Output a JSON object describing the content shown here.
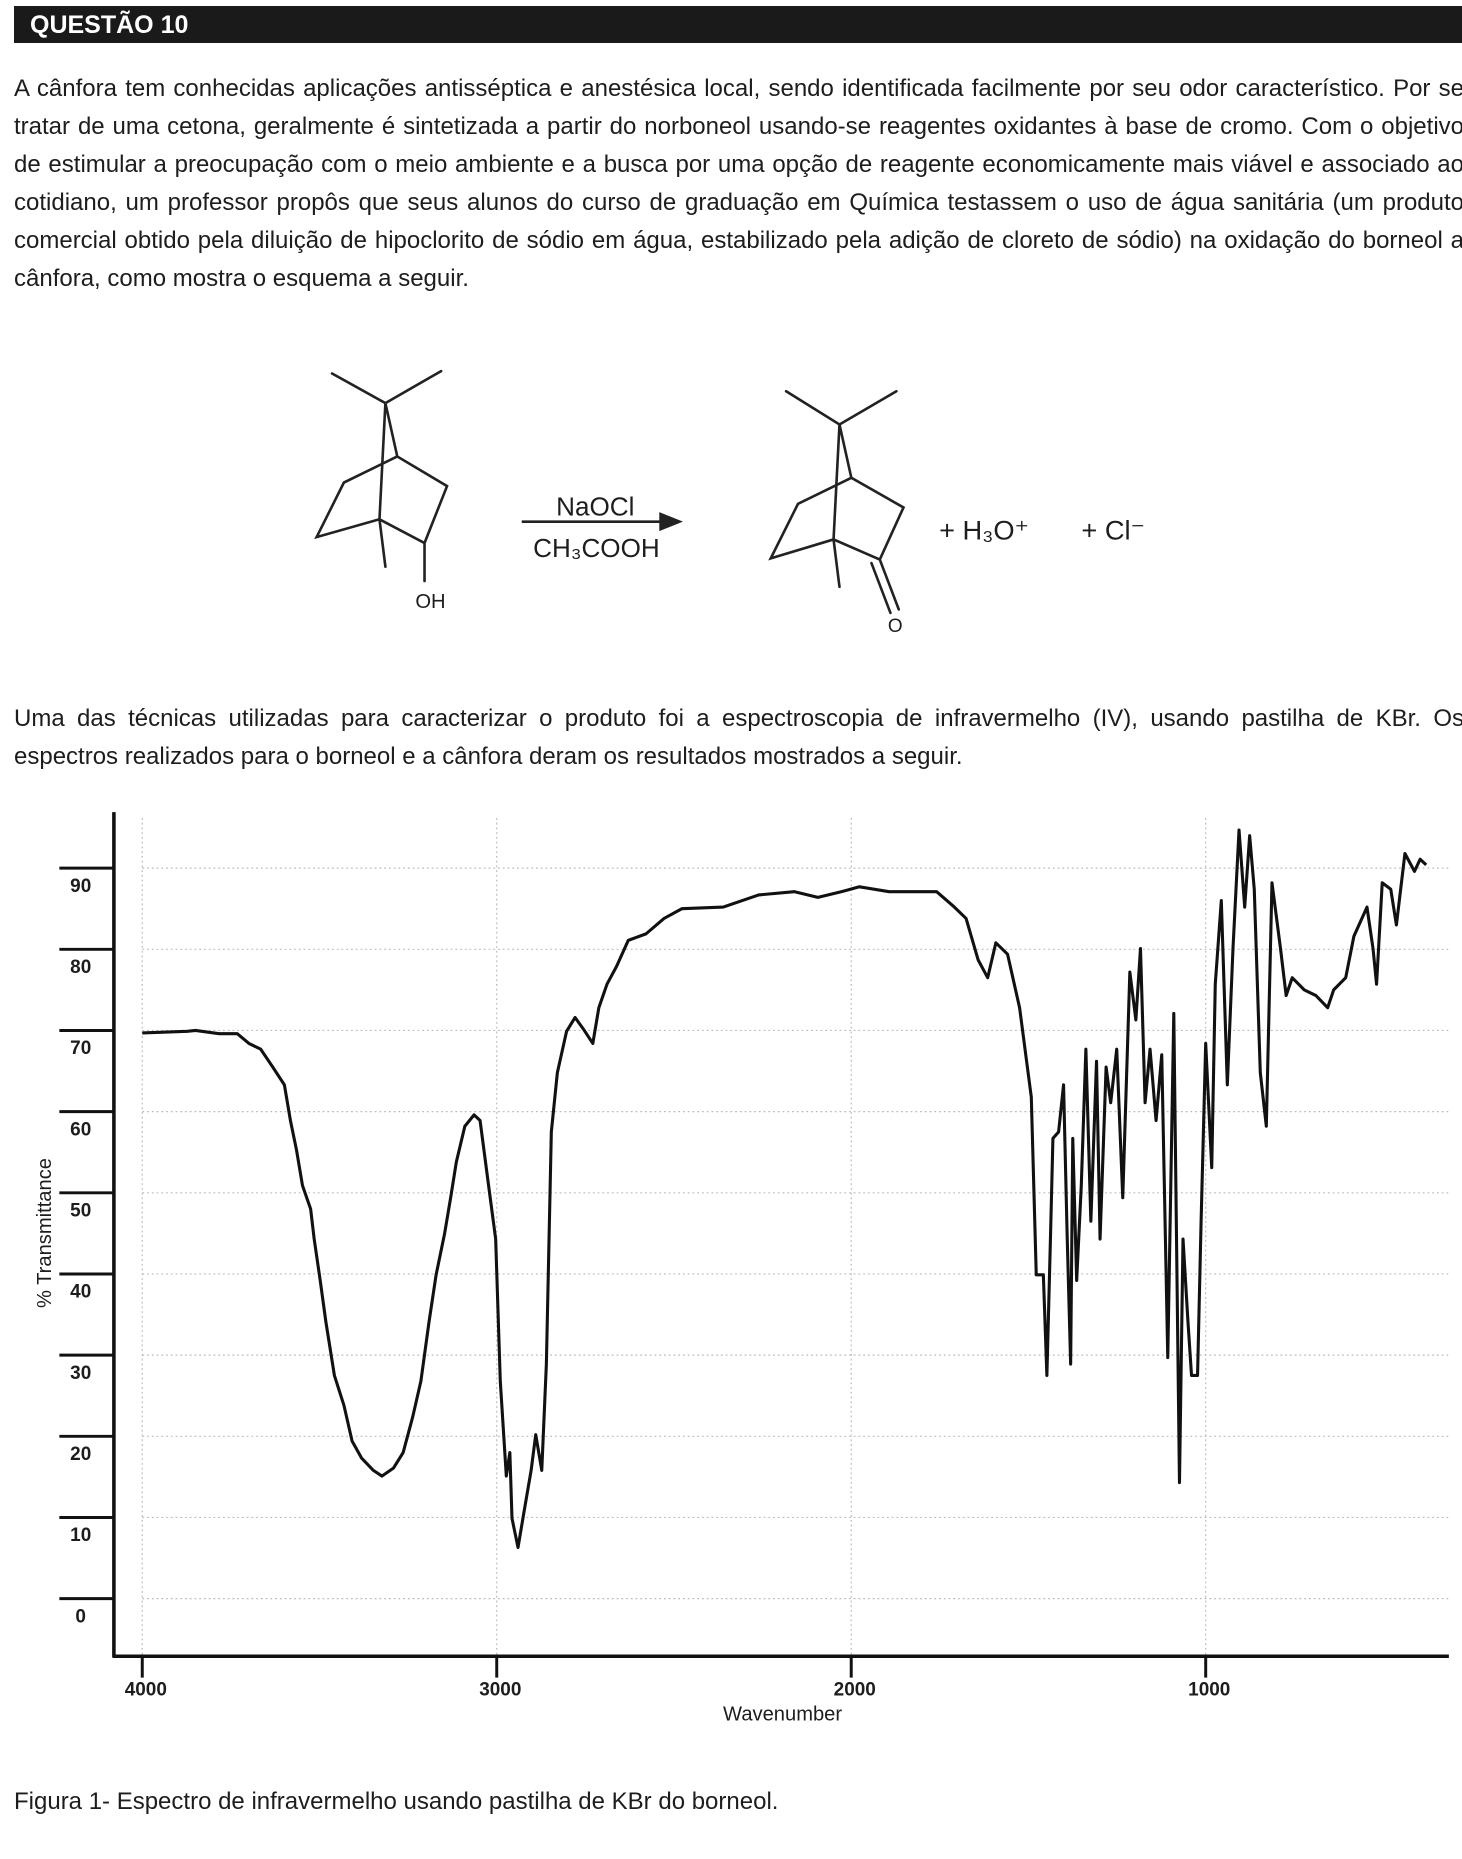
{
  "header": {
    "title": "QUESTÃO 10"
  },
  "paragraphs": [
    "A cânfora tem conhecidas aplicações antisséptica e anestésica local, sendo identificada facilmente por seu odor característico. Por se tratar de uma cetona, geralmente é sintetizada a partir do norboneol usando-se reagentes oxidantes à base de cromo. Com o objetivo de estimular a preocupação com o meio ambiente e a busca por uma opção de reagente economicamente mais viável e associado ao cotidiano, um professor propôs que seus alunos do curso de graduação em Química testassem o uso de água sanitária (um produto comercial obtido pela diluição de hipoclorito de sódio em água, estabilizado pela adição de cloreto de sódio) na oxidação do borneol a cânfora, como mostra o esquema a seguir.",
    "Uma das técnicas utilizadas para caracterizar o produto foi a espectroscopia de infravermelho (IV), usando pastilha de KBr. Os espectros realizados para o borneol e a cânfora deram os resultados mostrados a seguir."
  ],
  "scheme": {
    "reagent_top": "NaOCl",
    "reagent_bottom": "CH₃COOH",
    "reactant_group": "OH",
    "product_group": "O",
    "byproduct_1": "+ H₃O⁺",
    "byproduct_2": "+ Cl⁻"
  },
  "chart_data": {
    "type": "line",
    "x_label": "Wavenumber",
    "y_label": "% Transmittance",
    "x": [
      4000,
      3873,
      3850,
      3783,
      3732,
      3699,
      3666,
      3632,
      3599,
      3582,
      3565,
      3548,
      3525,
      3515,
      3498,
      3482,
      3458,
      3431,
      3408,
      3381,
      3348,
      3324,
      3291,
      3264,
      3237,
      3214,
      3191,
      3171,
      3147,
      3130,
      3114,
      3090,
      3064,
      3047,
      3023,
      3003,
      2990,
      2973,
      2963,
      2957,
      2940,
      2923,
      2903,
      2890,
      2873,
      2860,
      2846,
      2829,
      2803,
      2779,
      2756,
      2729,
      2712,
      2689,
      2662,
      2629,
      2579,
      2528,
      2478,
      2361,
      2261,
      2161,
      2094,
      2027,
      1977,
      1893,
      1759,
      1709,
      1676,
      1642,
      1615,
      1592,
      1559,
      1525,
      1492,
      1478,
      1458,
      1448,
      1438,
      1431,
      1415,
      1401,
      1391,
      1381,
      1375,
      1364,
      1351,
      1338,
      1324,
      1308,
      1298,
      1281,
      1268,
      1251,
      1234,
      1214,
      1197,
      1184,
      1171,
      1157,
      1140,
      1124,
      1107,
      1090,
      1074,
      1064,
      1050,
      1040,
      1023,
      1013,
      1000,
      983,
      973,
      956,
      939,
      923,
      906,
      890,
      876,
      863,
      846,
      829,
      813,
      789,
      773,
      756,
      722,
      689,
      656,
      639,
      605,
      582,
      545,
      528,
      518,
      502,
      478,
      462,
      438,
      411,
      395,
      378
    ],
    "series": [
      {
        "name": "borneol",
        "color": "#111111",
        "values": [
          69.7,
          69.9,
          70,
          69.6,
          69.6,
          68.4,
          67.7,
          65.5,
          63.3,
          58.9,
          55.3,
          50.9,
          48,
          44.3,
          39.2,
          34.1,
          27.5,
          23.8,
          19.4,
          17.3,
          15.8,
          15.1,
          16.1,
          18,
          22.4,
          26.8,
          34.1,
          39.9,
          45,
          49.4,
          53.8,
          58.2,
          59.6,
          58.9,
          50.9,
          44.3,
          26.8,
          15.1,
          18,
          9.9,
          6.3,
          10.7,
          15.8,
          20.2,
          15.8,
          28.9,
          57.5,
          64.8,
          69.9,
          71.6,
          70.2,
          68.4,
          72.8,
          75.7,
          77.9,
          81.1,
          81.9,
          83.8,
          85,
          85.2,
          86.7,
          87.1,
          86.4,
          87.1,
          87.7,
          87.1,
          87.1,
          85.2,
          83.8,
          78.7,
          76.5,
          80.8,
          79.4,
          72.8,
          61.8,
          39.9,
          39.9,
          27.5,
          44.3,
          56.7,
          57.5,
          63.3,
          45,
          28.9,
          56.7,
          39.2,
          50.9,
          67.7,
          46.5,
          66.2,
          44.3,
          65.5,
          61.1,
          67.7,
          49.4,
          77.2,
          71.3,
          80.1,
          61.1,
          67.7,
          58.9,
          67,
          29.7,
          72.1,
          14.3,
          44.3,
          34.1,
          27.5,
          27.5,
          46.5,
          68.4,
          53.1,
          75.7,
          86,
          63.3,
          80.1,
          94.7,
          85.2,
          94,
          87.4,
          64.8,
          58.2,
          88.2,
          80.1,
          74.3,
          76.5,
          75,
          74.3,
          72.8,
          75,
          76.5,
          81.6,
          85.2,
          80.1,
          75.7,
          88.2,
          87.4,
          83,
          91.8,
          89.6,
          91.1,
          90.4
        ]
      }
    ],
    "xlim": [
      4080,
      314
    ],
    "xticks": [
      4000,
      3000,
      2000,
      1000
    ],
    "ylim": [
      -7.1,
      96.9
    ],
    "yticks": [
      0,
      10,
      20,
      30,
      40,
      50,
      60,
      70,
      80,
      90
    ],
    "grid": true,
    "caption": "Figura 1- Espectro de infravermelho usando pastilha de KBr do borneol."
  }
}
